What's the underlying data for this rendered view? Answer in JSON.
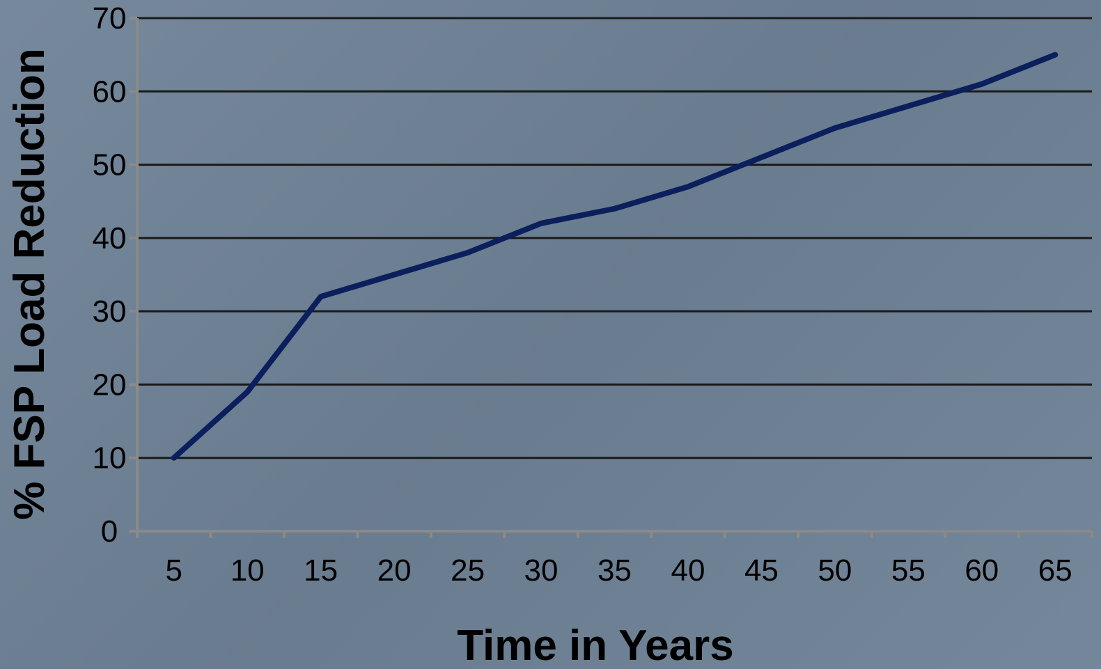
{
  "chart_data": {
    "type": "line",
    "title": "",
    "xlabel": "Time in Years",
    "ylabel": "% FSP Load Reduction",
    "categories": [
      "5",
      "10",
      "15",
      "20",
      "25",
      "30",
      "35",
      "40",
      "45",
      "50",
      "55",
      "60",
      "65"
    ],
    "series": [
      {
        "values": [
          10,
          19,
          32,
          35,
          38,
          42,
          44,
          47,
          51,
          55,
          58,
          61,
          65
        ],
        "color": "#0a1f5c"
      }
    ],
    "ylim": [
      0,
      70
    ],
    "yticks": [
      0,
      10,
      20,
      30,
      40,
      50,
      60,
      70
    ],
    "grid": "horizontal",
    "legend": "none",
    "colors": {
      "background": "#6f8296",
      "gridline": "#1a1a1a",
      "axis": "#8a8a8a",
      "line": "#0a1f5c"
    }
  }
}
